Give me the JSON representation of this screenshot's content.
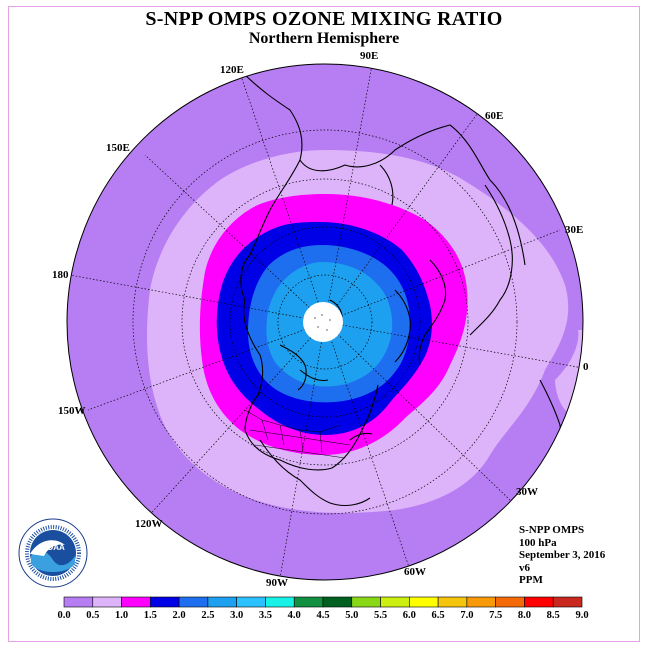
{
  "title": "S-NPP OMPS OZONE MIXING RATIO",
  "subtitle": "Northern Hemisphere",
  "longitudes": {
    "e90": "90E",
    "e120": "120E",
    "e60": "60E",
    "e150": "150E",
    "e30": "30E",
    "e180": "180",
    "zero": "0",
    "w150": "150W",
    "w30": "30W",
    "w120": "120W",
    "w60": "60W",
    "w90": "90W"
  },
  "info": {
    "instrument": "S-NPP OMPS",
    "level": "100 hPa",
    "date": "September 3, 2016",
    "version": "v6",
    "units": "PPM"
  },
  "logo": {
    "text": "NOAA",
    "ring_text": "NATIONAL OCEANIC AND ATMOSPHERIC ADMINISTRATION · U.S. DEPARTMENT OF COMMERCE"
  },
  "colorbar": {
    "labels": [
      "0.0",
      "0.5",
      "1.0",
      "1.5",
      "2.0",
      "2.5",
      "3.0",
      "3.5",
      "4.0",
      "4.5",
      "5.0",
      "5.5",
      "6.0",
      "6.5",
      "7.0",
      "7.5",
      "8.0",
      "8.5",
      "9.0"
    ],
    "colors": [
      "#b77df2",
      "#ddb4fa",
      "#ff00ff",
      "#0000e6",
      "#1e6ff0",
      "#1ea0f0",
      "#2cc1ff",
      "#18f2e6",
      "#109040",
      "#006020",
      "#88d818",
      "#ccee10",
      "#ffff00",
      "#f5c40c",
      "#f89a08",
      "#f56a08",
      "#ff0000",
      "#c8281e"
    ]
  },
  "map_colors": {
    "outside": "#b77df2",
    "band_05": "#ddb4fa",
    "band_10": "#ff00ff",
    "band_15": "#0000e6",
    "band_20": "#1e6ff0",
    "band_25": "#1ea0f0",
    "pole_gap": "#ffffff"
  }
}
